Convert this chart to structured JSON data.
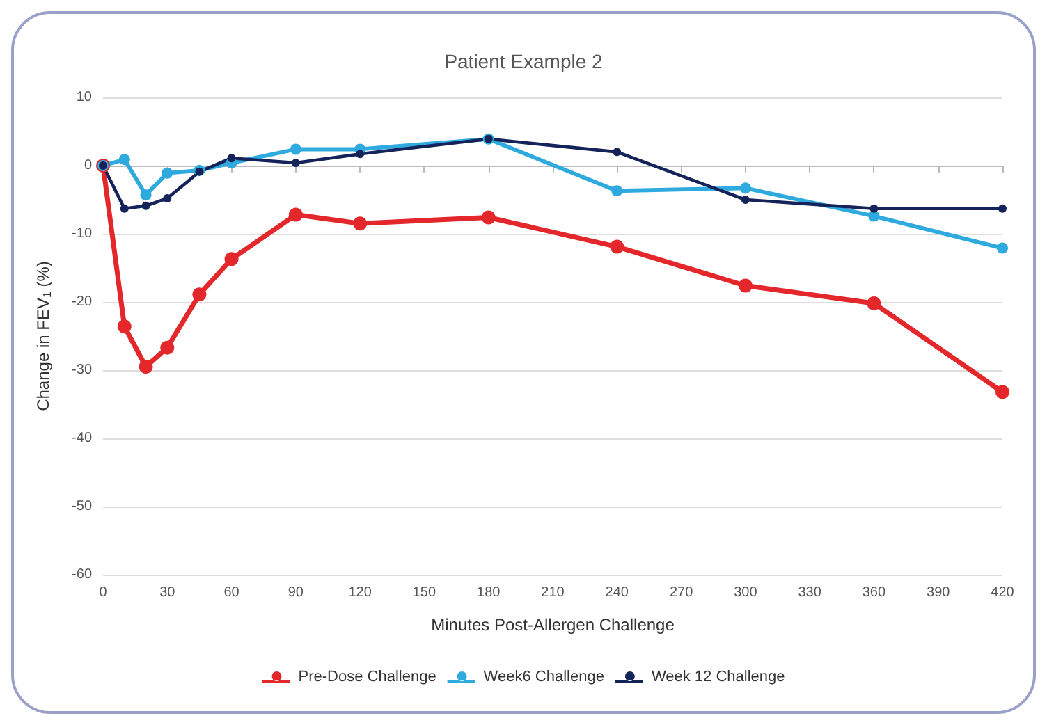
{
  "chart_data": {
    "type": "line",
    "title": "Patient Example 2",
    "xlabel": "Minutes Post-Allergen Challenge",
    "ylabel": "Change in FEV$_{1}$ (%)",
    "x": [
      0,
      10,
      20,
      30,
      45,
      60,
      90,
      120,
      180,
      240,
      300,
      360,
      420
    ],
    "series": [
      {
        "name": "Pre-Dose Challenge",
        "color": "#e3272b",
        "values": [
          0,
          -23.6,
          -29.5,
          -26.7,
          -18.9,
          -13.7,
          -7.2,
          -8.5,
          -7.6,
          -11.9,
          -17.6,
          -20.2,
          -33.2
        ]
      },
      {
        "name": "Week6 Challenge",
        "color": "#2eaade",
        "values": [
          0,
          0.9,
          -4.3,
          -1.1,
          -0.7,
          0.4,
          2.4,
          2.4,
          3.9,
          -3.7,
          -3.3,
          -7.4,
          -12.1
        ]
      },
      {
        "name": "Week 12 Challenge",
        "color": "#14235a",
        "values": [
          0,
          -6.3,
          -5.9,
          -4.8,
          -0.9,
          1.1,
          0.4,
          1.7,
          3.9,
          2.0,
          -5.0,
          -6.3,
          -6.3
        ]
      }
    ],
    "xlim": [
      0,
      420
    ],
    "xticks": [
      0,
      30,
      60,
      90,
      120,
      150,
      180,
      210,
      240,
      270,
      300,
      330,
      360,
      390,
      420
    ],
    "ylim": [
      -60,
      10
    ],
    "yticks": [
      -60,
      -50,
      -40,
      -30,
      -20,
      -10,
      0,
      10
    ],
    "grid": "y",
    "legend": "bottom",
    "marker": "circle",
    "line_style": "solid"
  }
}
